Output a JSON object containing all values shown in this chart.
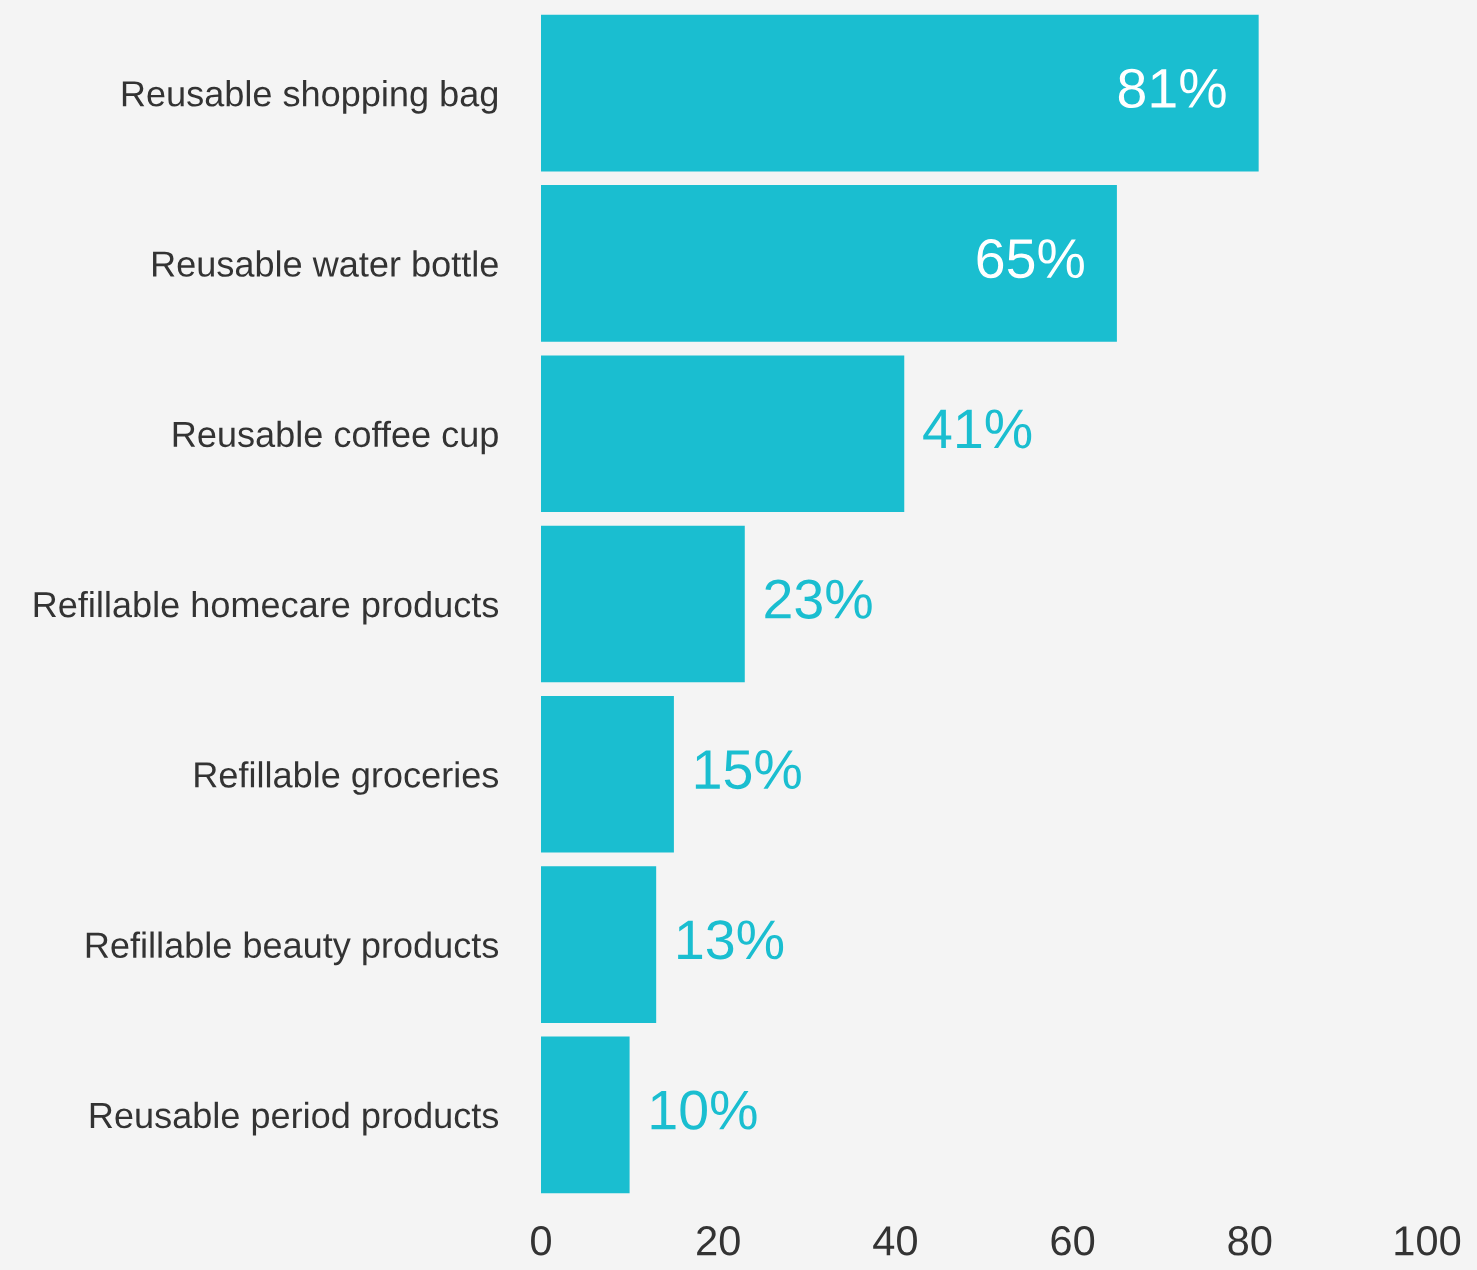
{
  "chart_data": {
    "type": "bar",
    "orientation": "horizontal",
    "categories": [
      "Reusable shopping bag",
      "Reusable water bottle",
      "Reusable coffee cup",
      "Refillable homecare products",
      "Refillable groceries",
      "Refillable beauty products",
      "Reusable period products"
    ],
    "values": [
      81,
      65,
      41,
      23,
      15,
      13,
      10
    ],
    "value_labels": [
      "81%",
      "65%",
      "41%",
      "23%",
      "15%",
      "13%",
      "10%"
    ],
    "color": "#1abed0",
    "xlim": [
      0,
      100
    ],
    "xticks": [
      0,
      20,
      40,
      60,
      80,
      100
    ],
    "grid": false,
    "legend": false
  }
}
